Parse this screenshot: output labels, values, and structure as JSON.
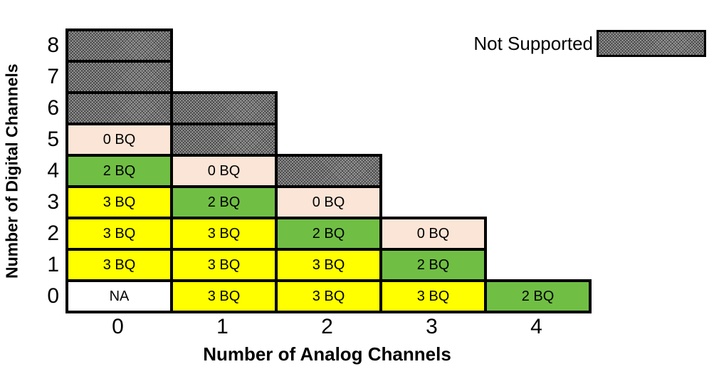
{
  "chart_data": {
    "type": "heatmap",
    "xlabel": "Number of Analog Channels",
    "ylabel": "Number of Digital Channels",
    "x_ticks": [
      "0",
      "1",
      "2",
      "3",
      "4"
    ],
    "y_ticks": [
      "8",
      "7",
      "6",
      "5",
      "4",
      "3",
      "2",
      "1",
      "0"
    ],
    "legend": {
      "not_supported_label": "Not Supported"
    },
    "palette": {
      "yellow": "#FFFF00",
      "green": "#70BF44",
      "peach": "#FBE5D6",
      "white": "#FFFFFF",
      "hatch_gray": "#9A9A9A",
      "border": "#000000"
    },
    "rows": [
      {
        "digital": "8",
        "cells": [
          {
            "style": "hatched"
          },
          null,
          null,
          null,
          null
        ]
      },
      {
        "digital": "7",
        "cells": [
          {
            "style": "hatched"
          },
          null,
          null,
          null,
          null
        ]
      },
      {
        "digital": "6",
        "cells": [
          {
            "style": "hatched"
          },
          {
            "style": "hatched"
          },
          null,
          null,
          null
        ]
      },
      {
        "digital": "5",
        "cells": [
          {
            "label": "0 BQ",
            "color": "peach"
          },
          {
            "style": "hatched"
          },
          null,
          null,
          null
        ]
      },
      {
        "digital": "4",
        "cells": [
          {
            "label": "2 BQ",
            "color": "green"
          },
          {
            "label": "0 BQ",
            "color": "peach"
          },
          {
            "style": "hatched"
          },
          null,
          null
        ]
      },
      {
        "digital": "3",
        "cells": [
          {
            "label": "3 BQ",
            "color": "yellow"
          },
          {
            "label": "2 BQ",
            "color": "green"
          },
          {
            "label": "0 BQ",
            "color": "peach"
          },
          null,
          null
        ]
      },
      {
        "digital": "2",
        "cells": [
          {
            "label": "3 BQ",
            "color": "yellow"
          },
          {
            "label": "3 BQ",
            "color": "yellow"
          },
          {
            "label": "2 BQ",
            "color": "green"
          },
          {
            "label": "0 BQ",
            "color": "peach"
          },
          null
        ]
      },
      {
        "digital": "1",
        "cells": [
          {
            "label": "3 BQ",
            "color": "yellow"
          },
          {
            "label": "3 BQ",
            "color": "yellow"
          },
          {
            "label": "3 BQ",
            "color": "yellow"
          },
          {
            "label": "2 BQ",
            "color": "green"
          },
          null
        ]
      },
      {
        "digital": "0",
        "cells": [
          {
            "label": "NA",
            "color": "white"
          },
          {
            "label": "3 BQ",
            "color": "yellow"
          },
          {
            "label": "3 BQ",
            "color": "yellow"
          },
          {
            "label": "3 BQ",
            "color": "yellow"
          },
          {
            "label": "2 BQ",
            "color": "green"
          }
        ]
      }
    ]
  }
}
